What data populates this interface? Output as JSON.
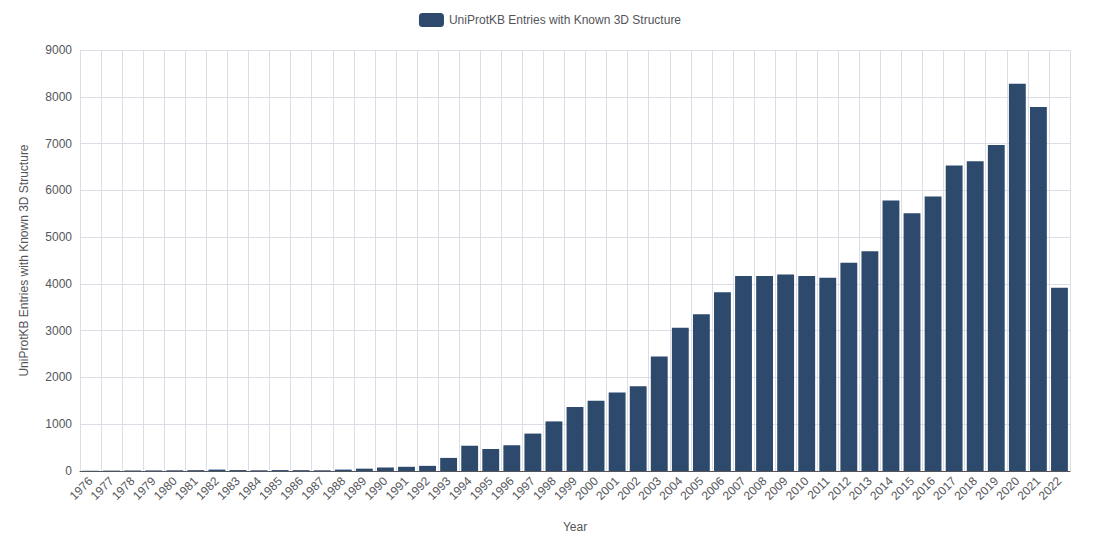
{
  "chart_data": {
    "type": "bar",
    "categories": [
      "1976",
      "1977",
      "1978",
      "1979",
      "1980",
      "1981",
      "1982",
      "1983",
      "1984",
      "1985",
      "1986",
      "1987",
      "1988",
      "1989",
      "1990",
      "1991",
      "1992",
      "1993",
      "1994",
      "1995",
      "1996",
      "1997",
      "1998",
      "1999",
      "2000",
      "2001",
      "2002",
      "2003",
      "2004",
      "2005",
      "2006",
      "2007",
      "2008",
      "2009",
      "2010",
      "2011",
      "2012",
      "2013",
      "2014",
      "2015",
      "2016",
      "2017",
      "2018",
      "2019",
      "2020",
      "2021",
      "2022"
    ],
    "series": [
      {
        "name": "UniProtKB Entries with Known 3D Structure",
        "color": "#2d4a6d",
        "values": [
          5,
          8,
          10,
          12,
          15,
          18,
          30,
          20,
          15,
          20,
          18,
          15,
          30,
          50,
          75,
          90,
          110,
          280,
          540,
          470,
          550,
          800,
          1060,
          1370,
          1500,
          1680,
          1810,
          2450,
          3060,
          3350,
          3820,
          4170,
          4170,
          4200,
          4170,
          4130,
          4450,
          4700,
          5780,
          5510,
          5870,
          6530,
          6620,
          6970,
          8280,
          7780,
          3920
        ]
      }
    ],
    "xlabel": "Year",
    "ylabel": "UniProtKB Entries with Known 3D Structure",
    "ylim": [
      0,
      9000
    ],
    "yticks": [
      0,
      1000,
      2000,
      3000,
      4000,
      5000,
      6000,
      7000,
      8000,
      9000
    ],
    "grid": true,
    "legend": "upper center"
  }
}
